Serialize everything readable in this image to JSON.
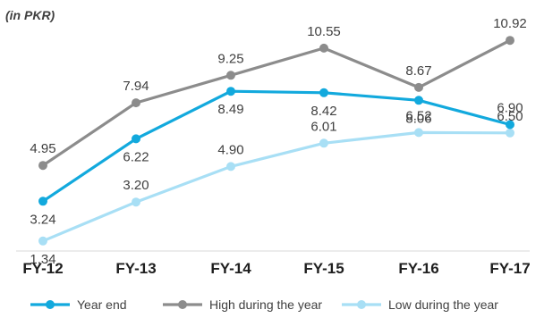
{
  "chart_data": {
    "type": "line",
    "unit_note": "(in PKR)",
    "categories": [
      "FY-12",
      "FY-13",
      "FY-14",
      "FY-15",
      "FY-16",
      "FY-17"
    ],
    "series": [
      {
        "name": "Year end",
        "color": "#12a9dd",
        "values": [
          3.24,
          6.22,
          8.49,
          8.42,
          8.06,
          6.9
        ],
        "labels": [
          "3.24",
          "6.22",
          "8.49",
          "8.42",
          "8.06",
          "6.90"
        ]
      },
      {
        "name": "High during the year",
        "color": "#8c8c8c",
        "values": [
          4.95,
          7.94,
          9.25,
          10.55,
          8.67,
          10.92
        ],
        "labels": [
          "4.95",
          "7.94",
          "9.25",
          "10.55",
          "8.67",
          "10.92"
        ]
      },
      {
        "name": "Low during the year",
        "color": "#a8dff5",
        "values": [
          1.34,
          3.2,
          4.9,
          6.01,
          6.52,
          6.5
        ],
        "labels": [
          "1.34",
          "3.20",
          "4.90",
          "6.01",
          "6.52",
          "6.50"
        ]
      }
    ],
    "ylim": [
      0,
      12
    ],
    "grid": false,
    "legend_position": "bottom"
  }
}
